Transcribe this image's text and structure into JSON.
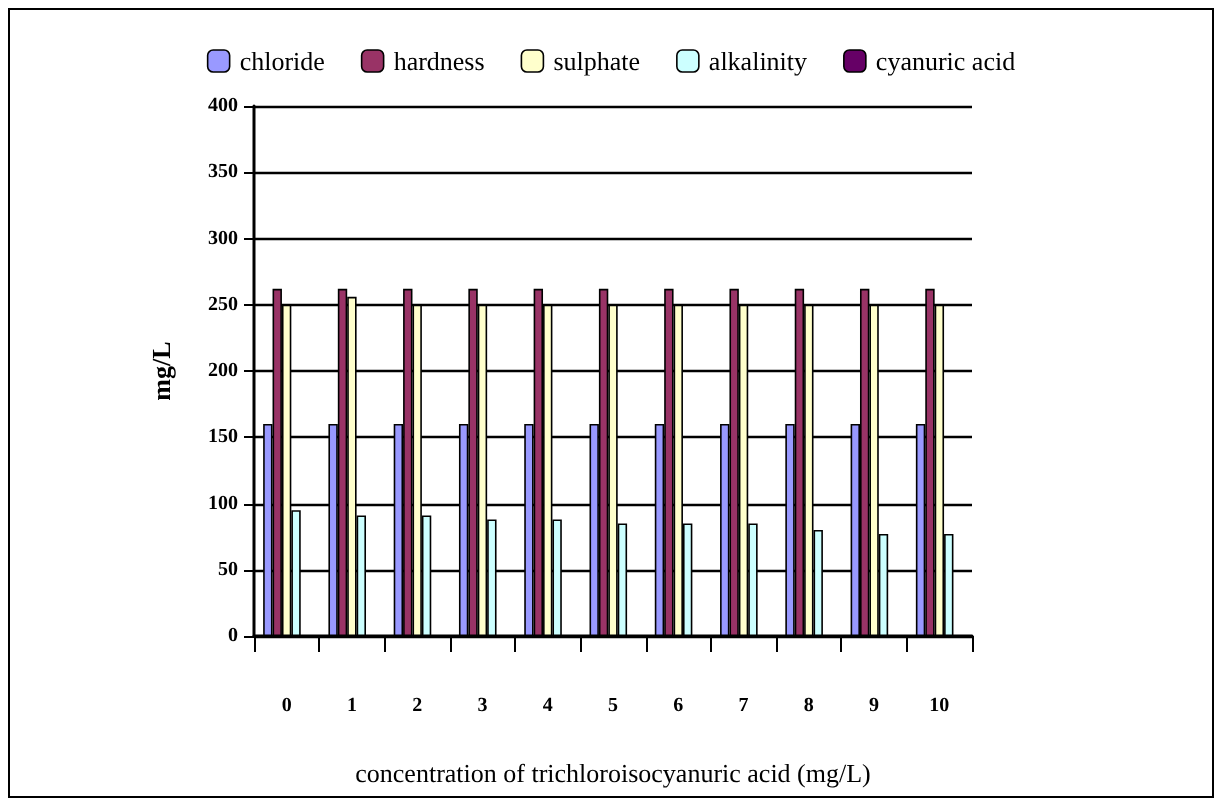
{
  "chart_data": {
    "type": "bar",
    "xlabel": "concentration of trichloroisocyanuric acid (mg/L)",
    "ylabel": "mg/L",
    "categories": [
      "0",
      "1",
      "2",
      "3",
      "4",
      "5",
      "6",
      "7",
      "8",
      "9",
      "10"
    ],
    "series": [
      {
        "name": "chloride",
        "color": "#9999ff",
        "values": [
          160,
          160,
          160,
          160,
          160,
          160,
          160,
          160,
          160,
          160,
          160
        ]
      },
      {
        "name": "hardness",
        "color": "#993366",
        "values": [
          262,
          262,
          262,
          262,
          262,
          262,
          262,
          262,
          262,
          262,
          262
        ]
      },
      {
        "name": "sulphate",
        "color": "#ffffcc",
        "values": [
          250,
          256,
          250,
          250,
          250,
          250,
          250,
          250,
          250,
          250,
          250
        ]
      },
      {
        "name": "alkalinity",
        "color": "#ccffff",
        "values": [
          95,
          91,
          91,
          88,
          88,
          85,
          85,
          85,
          80,
          77,
          77
        ]
      },
      {
        "name": "cyanuric acid",
        "color": "#660066",
        "values": [
          null,
          null,
          null,
          null,
          null,
          null,
          null,
          null,
          null,
          null,
          null
        ]
      }
    ],
    "ylim": [
      0,
      400
    ],
    "yticks": [
      0,
      50,
      100,
      150,
      200,
      250,
      300,
      350,
      400
    ],
    "grid": "y",
    "legend": "top"
  }
}
